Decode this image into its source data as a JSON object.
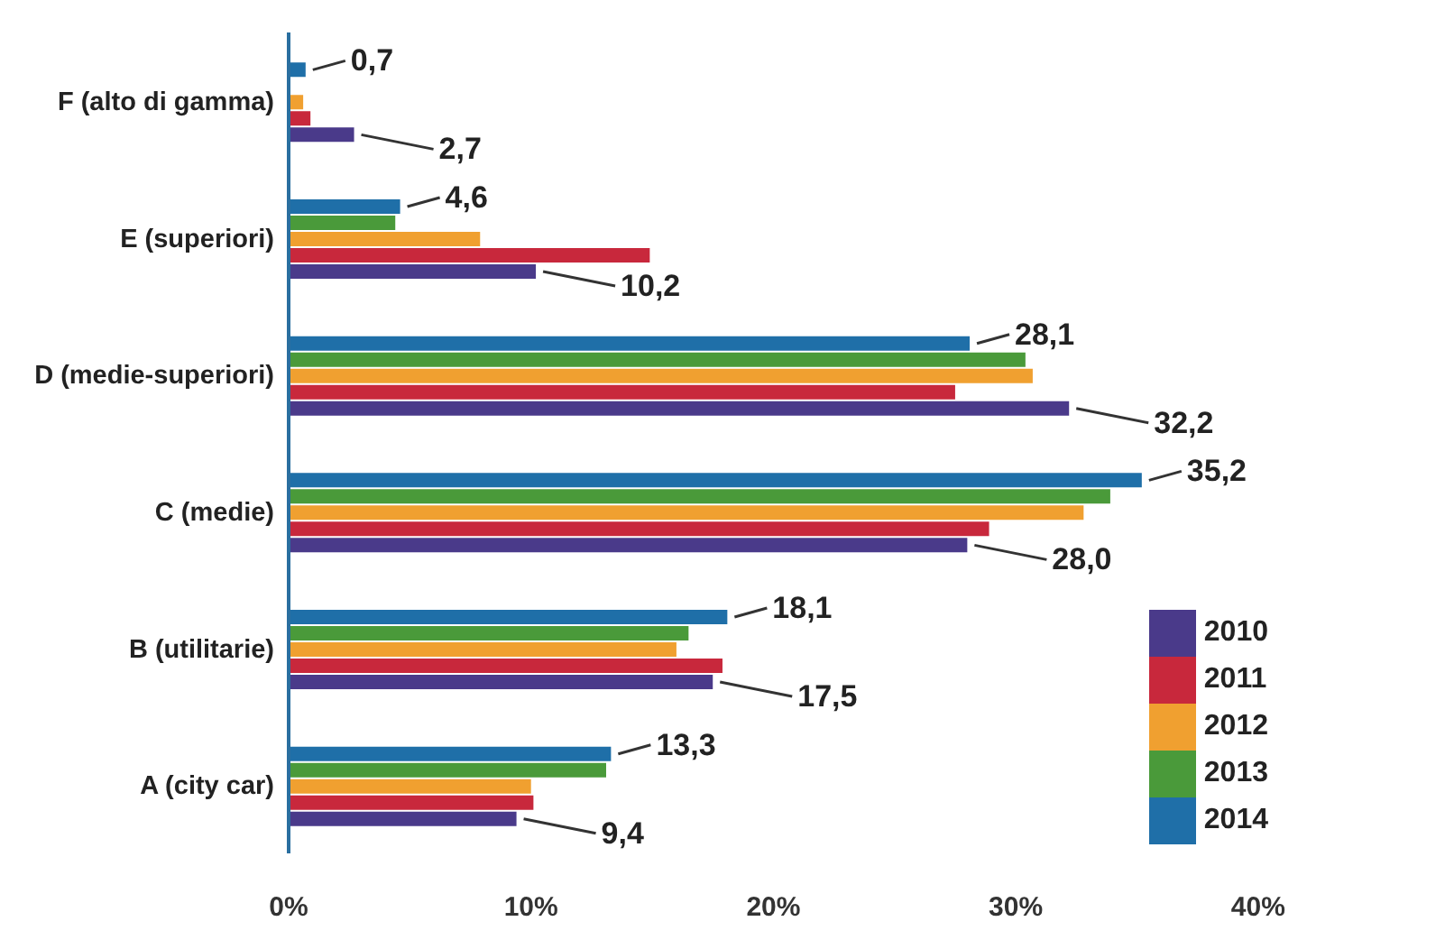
{
  "chart_data": {
    "type": "bar",
    "orientation": "horizontal",
    "categories": [
      "F (alto di gamma)",
      "E (superiori)",
      "D (medie-superiori)",
      "C (medie)",
      "B (utilitarie)",
      "A (city car)"
    ],
    "series": [
      {
        "name": "2014",
        "color": "#1f6fa8",
        "values": [
          0.7,
          4.6,
          28.1,
          35.2,
          18.1,
          13.3
        ],
        "value_labels": [
          "0,7",
          "4,6",
          "28,1",
          "35,2",
          "18,1",
          "13,3"
        ]
      },
      {
        "name": "2013",
        "color": "#4a9a3a",
        "values": [
          null,
          4.4,
          30.4,
          33.9,
          16.5,
          13.1
        ]
      },
      {
        "name": "2012",
        "color": "#f0a030",
        "values": [
          0.6,
          7.9,
          30.7,
          32.8,
          16.0,
          10.0
        ]
      },
      {
        "name": "2011",
        "color": "#c8283c",
        "values": [
          0.9,
          14.9,
          27.5,
          28.9,
          17.9,
          10.1
        ]
      },
      {
        "name": "2010",
        "color": "#4a3a8a",
        "values": [
          2.7,
          10.2,
          32.2,
          28.0,
          17.5,
          9.4
        ],
        "value_labels": [
          "2,7",
          "10,2",
          "32,2",
          "28,0",
          "17,5",
          "9,4"
        ]
      }
    ],
    "xlim": [
      0,
      40
    ],
    "xticks": [
      {
        "value": 0,
        "label": "0%"
      },
      {
        "value": 10,
        "label": "10%"
      },
      {
        "value": 20,
        "label": "20%"
      },
      {
        "value": 30,
        "label": "30%"
      },
      {
        "value": 40,
        "label": "40%"
      }
    ],
    "legend": "bottom right",
    "grid": false
  }
}
